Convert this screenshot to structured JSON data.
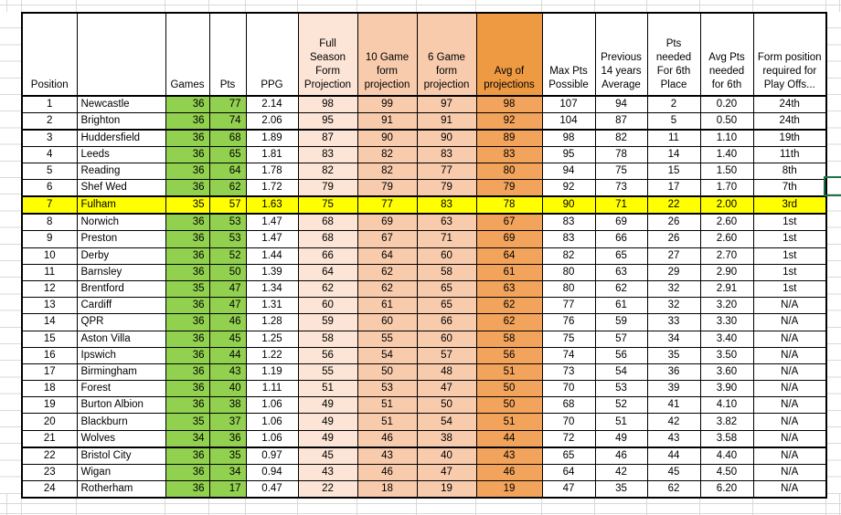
{
  "colors": {
    "green": "#92D050",
    "yellow": "#FFFF00",
    "peach-light": "#FCE4D6",
    "peach": "#F8CBAD",
    "orange-header": "#EE9A43",
    "orange-data": "#F2A45C",
    "selection": "#1F7246",
    "gridline": "#D9D9D9"
  },
  "table": {
    "headers": [
      "Position",
      "",
      "Games",
      "Pts",
      "PPG",
      "Full Season Form Projection",
      "10 Game form projection",
      "6 Game form projection",
      "Avg of projections",
      "Max Pts Possible",
      "Previous 14 years Average",
      "Pts needed For 6th Place",
      "Avg Pts needed for 6th",
      "Form position required for Play Offs..."
    ],
    "rows": [
      {
        "position": "1",
        "team": "Newcastle",
        "games": "36",
        "pts": "77",
        "ppg": "2.14",
        "proj_full": "98",
        "proj_10": "99",
        "proj_6": "97",
        "proj_avg": "98",
        "max_pts": "107",
        "prev_avg": "94",
        "pts_needed_6th": "2",
        "avg_pts_needed_6th": "0.20",
        "form_position": "24th"
      },
      {
        "position": "2",
        "team": "Brighton",
        "games": "36",
        "pts": "74",
        "ppg": "2.06",
        "proj_full": "95",
        "proj_10": "91",
        "proj_6": "91",
        "proj_avg": "92",
        "max_pts": "104",
        "prev_avg": "87",
        "pts_needed_6th": "5",
        "avg_pts_needed_6th": "0.50",
        "form_position": "24th",
        "cutoff_below": true
      },
      {
        "position": "3",
        "team": "Huddersfield",
        "games": "36",
        "pts": "68",
        "ppg": "1.89",
        "proj_full": "87",
        "proj_10": "90",
        "proj_6": "90",
        "proj_avg": "89",
        "max_pts": "98",
        "prev_avg": "82",
        "pts_needed_6th": "11",
        "avg_pts_needed_6th": "1.10",
        "form_position": "19th"
      },
      {
        "position": "4",
        "team": "Leeds",
        "games": "36",
        "pts": "65",
        "ppg": "1.81",
        "proj_full": "83",
        "proj_10": "82",
        "proj_6": "83",
        "proj_avg": "83",
        "max_pts": "95",
        "prev_avg": "78",
        "pts_needed_6th": "14",
        "avg_pts_needed_6th": "1.40",
        "form_position": "11th"
      },
      {
        "position": "5",
        "team": "Reading",
        "games": "36",
        "pts": "64",
        "ppg": "1.78",
        "proj_full": "82",
        "proj_10": "82",
        "proj_6": "77",
        "proj_avg": "80",
        "max_pts": "94",
        "prev_avg": "75",
        "pts_needed_6th": "15",
        "avg_pts_needed_6th": "1.50",
        "form_position": "8th"
      },
      {
        "position": "6",
        "team": "Shef Wed",
        "games": "36",
        "pts": "62",
        "ppg": "1.72",
        "proj_full": "79",
        "proj_10": "79",
        "proj_6": "79",
        "proj_avg": "79",
        "max_pts": "92",
        "prev_avg": "73",
        "pts_needed_6th": "17",
        "avg_pts_needed_6th": "1.70",
        "form_position": "7th",
        "cutoff_below": true
      },
      {
        "position": "7",
        "team": "Fulham",
        "games": "35",
        "pts": "57",
        "ppg": "1.63",
        "proj_full": "75",
        "proj_10": "77",
        "proj_6": "83",
        "proj_avg": "78",
        "max_pts": "90",
        "prev_avg": "71",
        "pts_needed_6th": "22",
        "avg_pts_needed_6th": "2.00",
        "form_position": "3rd",
        "highlight": true,
        "cutoff_below": true
      },
      {
        "position": "8",
        "team": "Norwich",
        "games": "36",
        "pts": "53",
        "ppg": "1.47",
        "proj_full": "68",
        "proj_10": "69",
        "proj_6": "63",
        "proj_avg": "67",
        "max_pts": "83",
        "prev_avg": "69",
        "pts_needed_6th": "26",
        "avg_pts_needed_6th": "2.60",
        "form_position": "1st"
      },
      {
        "position": "9",
        "team": "Preston",
        "games": "36",
        "pts": "53",
        "ppg": "1.47",
        "proj_full": "68",
        "proj_10": "67",
        "proj_6": "71",
        "proj_avg": "69",
        "max_pts": "83",
        "prev_avg": "66",
        "pts_needed_6th": "26",
        "avg_pts_needed_6th": "2.60",
        "form_position": "1st"
      },
      {
        "position": "10",
        "team": "Derby",
        "games": "36",
        "pts": "52",
        "ppg": "1.44",
        "proj_full": "66",
        "proj_10": "64",
        "proj_6": "60",
        "proj_avg": "64",
        "max_pts": "82",
        "prev_avg": "65",
        "pts_needed_6th": "27",
        "avg_pts_needed_6th": "2.70",
        "form_position": "1st"
      },
      {
        "position": "11",
        "team": "Barnsley",
        "games": "36",
        "pts": "50",
        "ppg": "1.39",
        "proj_full": "64",
        "proj_10": "62",
        "proj_6": "58",
        "proj_avg": "61",
        "max_pts": "80",
        "prev_avg": "63",
        "pts_needed_6th": "29",
        "avg_pts_needed_6th": "2.90",
        "form_position": "1st"
      },
      {
        "position": "12",
        "team": "Brentford",
        "games": "35",
        "pts": "47",
        "ppg": "1.34",
        "proj_full": "62",
        "proj_10": "62",
        "proj_6": "65",
        "proj_avg": "63",
        "max_pts": "80",
        "prev_avg": "62",
        "pts_needed_6th": "32",
        "avg_pts_needed_6th": "2.91",
        "form_position": "1st"
      },
      {
        "position": "13",
        "team": "Cardiff",
        "games": "36",
        "pts": "47",
        "ppg": "1.31",
        "proj_full": "60",
        "proj_10": "61",
        "proj_6": "65",
        "proj_avg": "62",
        "max_pts": "77",
        "prev_avg": "61",
        "pts_needed_6th": "32",
        "avg_pts_needed_6th": "3.20",
        "form_position": "N/A"
      },
      {
        "position": "14",
        "team": "QPR",
        "games": "36",
        "pts": "46",
        "ppg": "1.28",
        "proj_full": "59",
        "proj_10": "60",
        "proj_6": "66",
        "proj_avg": "62",
        "max_pts": "76",
        "prev_avg": "59",
        "pts_needed_6th": "33",
        "avg_pts_needed_6th": "3.30",
        "form_position": "N/A"
      },
      {
        "position": "15",
        "team": "Aston Villa",
        "games": "36",
        "pts": "45",
        "ppg": "1.25",
        "proj_full": "58",
        "proj_10": "55",
        "proj_6": "60",
        "proj_avg": "58",
        "max_pts": "75",
        "prev_avg": "57",
        "pts_needed_6th": "34",
        "avg_pts_needed_6th": "3.40",
        "form_position": "N/A"
      },
      {
        "position": "16",
        "team": "Ipswich",
        "games": "36",
        "pts": "44",
        "ppg": "1.22",
        "proj_full": "56",
        "proj_10": "54",
        "proj_6": "57",
        "proj_avg": "56",
        "max_pts": "74",
        "prev_avg": "56",
        "pts_needed_6th": "35",
        "avg_pts_needed_6th": "3.50",
        "form_position": "N/A"
      },
      {
        "position": "17",
        "team": "Birmingham",
        "games": "36",
        "pts": "43",
        "ppg": "1.19",
        "proj_full": "55",
        "proj_10": "50",
        "proj_6": "48",
        "proj_avg": "51",
        "max_pts": "73",
        "prev_avg": "54",
        "pts_needed_6th": "36",
        "avg_pts_needed_6th": "3.60",
        "form_position": "N/A"
      },
      {
        "position": "18",
        "team": "Forest",
        "games": "36",
        "pts": "40",
        "ppg": "1.11",
        "proj_full": "51",
        "proj_10": "53",
        "proj_6": "47",
        "proj_avg": "50",
        "max_pts": "70",
        "prev_avg": "53",
        "pts_needed_6th": "39",
        "avg_pts_needed_6th": "3.90",
        "form_position": "N/A"
      },
      {
        "position": "19",
        "team": "Burton Albion",
        "games": "36",
        "pts": "38",
        "ppg": "1.06",
        "proj_full": "49",
        "proj_10": "51",
        "proj_6": "50",
        "proj_avg": "50",
        "max_pts": "68",
        "prev_avg": "52",
        "pts_needed_6th": "41",
        "avg_pts_needed_6th": "4.10",
        "form_position": "N/A"
      },
      {
        "position": "20",
        "team": "Blackburn",
        "games": "35",
        "pts": "37",
        "ppg": "1.06",
        "proj_full": "49",
        "proj_10": "51",
        "proj_6": "54",
        "proj_avg": "51",
        "max_pts": "70",
        "prev_avg": "51",
        "pts_needed_6th": "42",
        "avg_pts_needed_6th": "3.82",
        "form_position": "N/A"
      },
      {
        "position": "21",
        "team": "Wolves",
        "games": "34",
        "pts": "36",
        "ppg": "1.06",
        "proj_full": "49",
        "proj_10": "46",
        "proj_6": "38",
        "proj_avg": "44",
        "max_pts": "72",
        "prev_avg": "49",
        "pts_needed_6th": "43",
        "avg_pts_needed_6th": "3.58",
        "form_position": "N/A",
        "cutoff_below": true
      },
      {
        "position": "22",
        "team": "Bristol City",
        "games": "36",
        "pts": "35",
        "ppg": "0.97",
        "proj_full": "45",
        "proj_10": "43",
        "proj_6": "40",
        "proj_avg": "43",
        "max_pts": "65",
        "prev_avg": "46",
        "pts_needed_6th": "44",
        "avg_pts_needed_6th": "4.40",
        "form_position": "N/A"
      },
      {
        "position": "23",
        "team": "Wigan",
        "games": "36",
        "pts": "34",
        "ppg": "0.94",
        "proj_full": "43",
        "proj_10": "46",
        "proj_6": "47",
        "proj_avg": "46",
        "max_pts": "64",
        "prev_avg": "42",
        "pts_needed_6th": "45",
        "avg_pts_needed_6th": "4.50",
        "form_position": "N/A"
      },
      {
        "position": "24",
        "team": "Rotherham",
        "games": "36",
        "pts": "17",
        "ppg": "0.47",
        "proj_full": "22",
        "proj_10": "18",
        "proj_6": "19",
        "proj_avg": "19",
        "max_pts": "47",
        "prev_avg": "35",
        "pts_needed_6th": "62",
        "avg_pts_needed_6th": "6.20",
        "form_position": "N/A"
      }
    ]
  }
}
